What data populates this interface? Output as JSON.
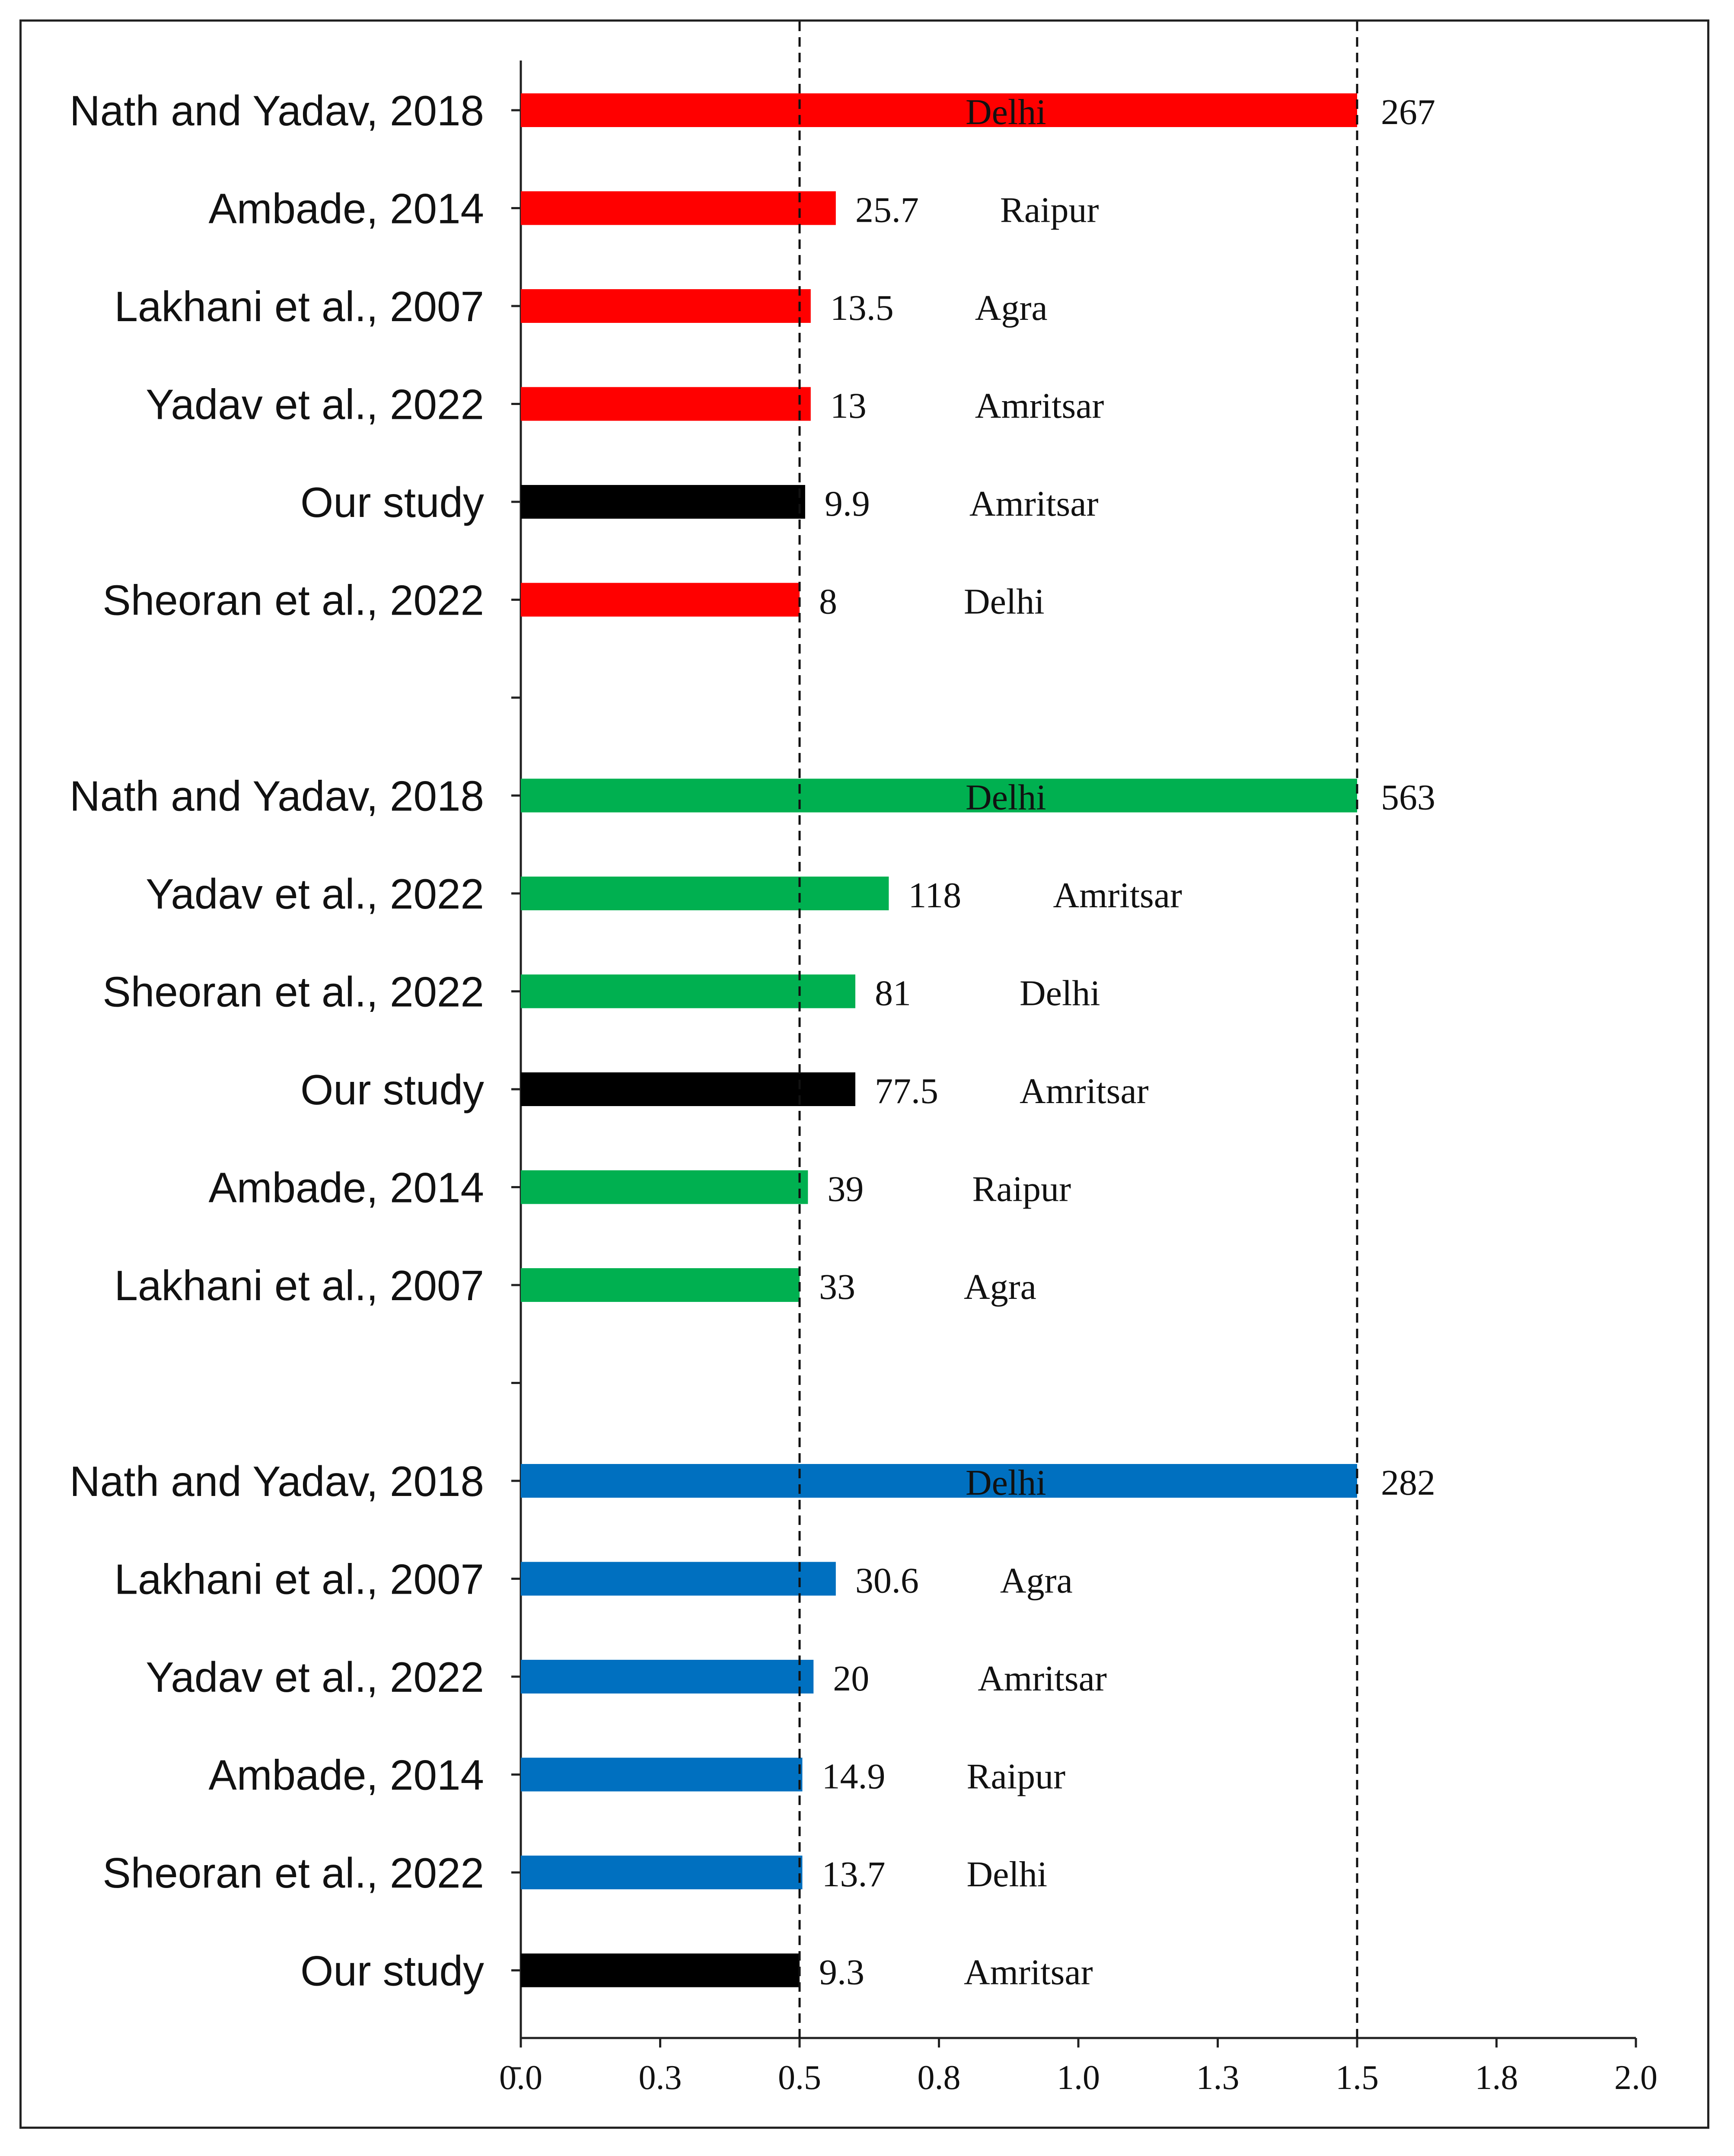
{
  "chart_data": {
    "type": "bar",
    "orientation": "horizontal",
    "xlim": [
      0.0,
      2.0
    ],
    "xticks": [
      "0.0",
      "0.3",
      "0.5",
      "0.8",
      "1.0",
      "1.3",
      "1.5",
      "1.8",
      "2.0"
    ],
    "reference_lines": [
      0.5,
      1.5
    ],
    "grid": false,
    "colors": {
      "red": "#ff0000",
      "green": "#00b050",
      "blue": "#0070c0",
      "ours": "#000000"
    },
    "groups": [
      {
        "color": "#ff0000",
        "bars": [
          {
            "label": "Nath and Yadav, 2018",
            "value_label": "267",
            "city": "Delhi",
            "x": 1.5,
            "ours": false
          },
          {
            "label": "Ambade, 2014",
            "value_label": "25.7",
            "city": "Raipur",
            "x": 0.565,
            "ours": false
          },
          {
            "label": "Lakhani et al., 2007",
            "value_label": "13.5",
            "city": "Agra",
            "x": 0.52,
            "ours": false
          },
          {
            "label": "Yadav et al., 2022",
            "value_label": "13",
            "city": "Amritsar",
            "x": 0.52,
            "ours": false
          },
          {
            "label": "Our study",
            "value_label": "9.9",
            "city": "Amritsar",
            "x": 0.51,
            "ours": true
          },
          {
            "label": "Sheoran et al., 2022",
            "value_label": "8",
            "city": "Delhi",
            "x": 0.5,
            "ours": false
          }
        ]
      },
      {
        "color": "#00b050",
        "bars": [
          {
            "label": "Nath and Yadav, 2018",
            "value_label": "563",
            "city": "Delhi",
            "x": 1.5,
            "ours": false
          },
          {
            "label": "Yadav et al., 2022",
            "value_label": "118",
            "city": "Amritsar",
            "x": 0.66,
            "ours": false
          },
          {
            "label": "Sheoran et al., 2022",
            "value_label": "81",
            "city": "Delhi",
            "x": 0.6,
            "ours": false
          },
          {
            "label": "Our study",
            "value_label": "77.5",
            "city": "Amritsar",
            "x": 0.6,
            "ours": true
          },
          {
            "label": "Ambade, 2014",
            "value_label": "39",
            "city": "Raipur",
            "x": 0.515,
            "ours": false
          },
          {
            "label": "Lakhani et al., 2007",
            "value_label": "33",
            "city": "Agra",
            "x": 0.5,
            "ours": false
          }
        ]
      },
      {
        "color": "#0070c0",
        "bars": [
          {
            "label": "Nath and Yadav, 2018",
            "value_label": "282",
            "city": "Delhi",
            "x": 1.5,
            "ours": false
          },
          {
            "label": "Lakhani et al., 2007",
            "value_label": "30.6",
            "city": "Agra",
            "x": 0.565,
            "ours": false
          },
          {
            "label": "Yadav et al., 2022",
            "value_label": "20",
            "city": "Amritsar",
            "x": 0.525,
            "ours": false
          },
          {
            "label": "Ambade, 2014",
            "value_label": "14.9",
            "city": "Raipur",
            "x": 0.505,
            "ours": false
          },
          {
            "label": "Sheoran et al., 2022",
            "value_label": "13.7",
            "city": "Delhi",
            "x": 0.505,
            "ours": false
          },
          {
            "label": "Our study",
            "value_label": "9.3",
            "city": "Amritsar",
            "x": 0.5,
            "ours": true
          }
        ]
      }
    ]
  }
}
